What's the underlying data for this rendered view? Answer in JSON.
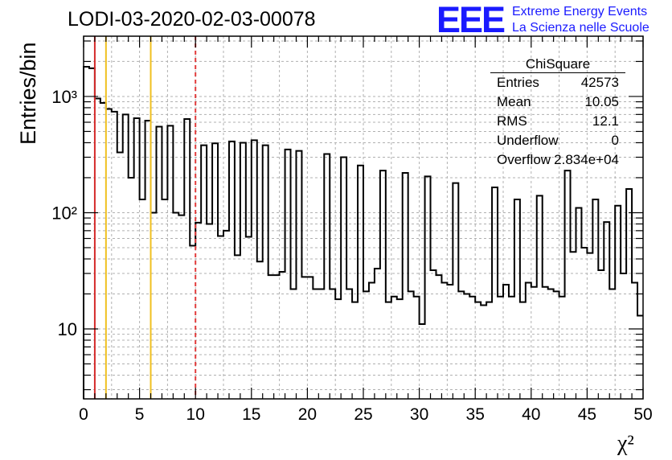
{
  "title": "LODI-03-2020-02-03-00078",
  "logo": {
    "mark": "EEE",
    "line1": "Extreme Energy Events",
    "line2": "La Scienza nelle Scuole",
    "color": "#1a1aff"
  },
  "stats": {
    "title": "ChiSquare",
    "rows": [
      {
        "key": "Entries",
        "value": "42573"
      },
      {
        "key": "Mean",
        "value": "10.05"
      },
      {
        "key": "RMS",
        "value": "12.1"
      },
      {
        "key": "Underflow",
        "value": "0"
      },
      {
        "key": "Overflow",
        "value": "2.834e+04"
      }
    ]
  },
  "chart_data": {
    "type": "bar",
    "subtype": "step-histogram",
    "xlabel": "χ²",
    "ylabel": "Entries/bin",
    "xlim": [
      0,
      50
    ],
    "ylim": [
      2.5,
      3300
    ],
    "y_scale": "log",
    "grid": true,
    "bin_width": 0.5,
    "x_ticks": [
      "0",
      "5",
      "10",
      "15",
      "20",
      "25",
      "30",
      "35",
      "40",
      "45",
      "50"
    ],
    "y_tick_labels": [
      {
        "value": 10,
        "label": "10"
      },
      {
        "value": 100,
        "label": "10²"
      },
      {
        "value": 1000,
        "label": "10³"
      }
    ],
    "values": [
      1800,
      1750,
      960,
      880,
      780,
      740,
      330,
      700,
      200,
      650,
      130,
      620,
      100,
      550,
      130,
      560,
      100,
      95,
      640,
      52,
      82,
      380,
      80,
      395,
      63,
      70,
      410,
      43,
      400,
      62,
      420,
      38,
      380,
      29,
      29,
      31,
      350,
      22,
      340,
      28,
      28,
      22,
      22,
      320,
      22,
      18,
      300,
      22,
      17,
      255,
      21,
      25,
      33,
      230,
      17,
      19,
      18,
      220,
      21,
      19,
      11,
      205,
      32,
      29,
      25,
      24,
      180,
      21,
      20,
      19,
      17,
      16,
      17,
      165,
      19,
      24,
      19,
      130,
      17,
      25,
      23,
      140,
      23,
      22,
      21,
      19,
      230,
      46,
      110,
      50,
      45,
      130,
      32,
      83,
      22,
      115,
      30,
      160,
      25,
      13
    ],
    "vertical_lines": [
      {
        "x": 1,
        "color": "#d42a2a",
        "style": "solid"
      },
      {
        "x": 2,
        "color": "#f0c020",
        "style": "solid"
      },
      {
        "x": 6,
        "color": "#f0c020",
        "style": "solid"
      },
      {
        "x": 10,
        "color": "#e23c3c",
        "style": "dashed"
      }
    ]
  }
}
